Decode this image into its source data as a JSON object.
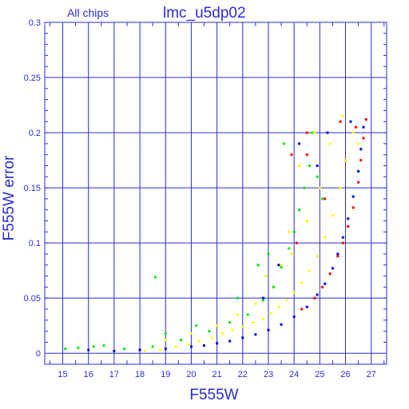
{
  "chart_data": {
    "type": "scatter",
    "title": "lmc_u5dp02",
    "subtitle": "All chips",
    "xlabel": "F555W",
    "ylabel": "F555W error",
    "xlim": [
      14.3,
      27.6
    ],
    "ylim": [
      -0.01,
      0.3
    ],
    "x_ticks": [
      "15",
      "16",
      "17",
      "18",
      "19",
      "20",
      "21",
      "22",
      "23",
      "24",
      "25",
      "26",
      "27"
    ],
    "y_ticks": [
      "0",
      "0.05",
      "0.1",
      "0.15",
      "0.2",
      "0.25",
      "0.3"
    ],
    "grid": true,
    "series": [
      {
        "color": "#ffff00",
        "points": [
          [
            18.2,
            0.002
          ],
          [
            18.8,
            0.003
          ],
          [
            19.4,
            0.006
          ],
          [
            19.9,
            0.008
          ],
          [
            20.3,
            0.011
          ],
          [
            20.8,
            0.014
          ],
          [
            21.2,
            0.018
          ],
          [
            21.6,
            0.021
          ],
          [
            22.0,
            0.024
          ],
          [
            22.4,
            0.028
          ],
          [
            22.8,
            0.031
          ],
          [
            23.1,
            0.036
          ],
          [
            23.4,
            0.042
          ],
          [
            23.7,
            0.048
          ],
          [
            24.0,
            0.055
          ],
          [
            24.3,
            0.064
          ],
          [
            24.6,
            0.075
          ],
          [
            24.9,
            0.088
          ],
          [
            25.2,
            0.105
          ],
          [
            25.5,
            0.125
          ],
          [
            25.8,
            0.15
          ],
          [
            26.0,
            0.175
          ],
          [
            26.3,
            0.2
          ],
          [
            25.0,
            0.15
          ],
          [
            24.5,
            0.12
          ],
          [
            23.9,
            0.09
          ],
          [
            23.2,
            0.06
          ],
          [
            22.5,
            0.045
          ],
          [
            21.8,
            0.035
          ],
          [
            21.0,
            0.025
          ],
          [
            20.0,
            0.018
          ],
          [
            19.0,
            0.012
          ],
          [
            24.8,
            0.2
          ],
          [
            25.4,
            0.19
          ],
          [
            24.2,
            0.17
          ],
          [
            23.5,
            0.08
          ],
          [
            22.9,
            0.07
          ],
          [
            25.9,
            0.215
          ],
          [
            26.5,
            0.19
          ],
          [
            23.8,
            0.11
          ]
        ]
      },
      {
        "color": "#00ee00",
        "points": [
          [
            15.1,
            0.004
          ],
          [
            15.6,
            0.005
          ],
          [
            16.2,
            0.006
          ],
          [
            16.6,
            0.007
          ],
          [
            17.4,
            0.004
          ],
          [
            18.5,
            0.006
          ],
          [
            19.6,
            0.012
          ],
          [
            20.7,
            0.02
          ],
          [
            21.5,
            0.028
          ],
          [
            22.2,
            0.035
          ],
          [
            22.8,
            0.048
          ],
          [
            23.2,
            0.06
          ],
          [
            23.5,
            0.078
          ],
          [
            23.8,
            0.095
          ],
          [
            24.0,
            0.11
          ],
          [
            24.2,
            0.13
          ],
          [
            24.4,
            0.15
          ],
          [
            24.6,
            0.17
          ],
          [
            23.6,
            0.19
          ],
          [
            24.9,
            0.16
          ],
          [
            22.6,
            0.08
          ],
          [
            21.8,
            0.05
          ],
          [
            20.2,
            0.025
          ],
          [
            19.0,
            0.018
          ],
          [
            23.0,
            0.09
          ],
          [
            24.7,
            0.2
          ],
          [
            25.1,
            0.14
          ],
          [
            18.6,
            0.069
          ]
        ]
      },
      {
        "color": "#0000ee",
        "points": [
          [
            16.0,
            0.003
          ],
          [
            17.0,
            0.002
          ],
          [
            18.0,
            0.003
          ],
          [
            19.0,
            0.004
          ],
          [
            20.0,
            0.006
          ],
          [
            20.5,
            0.007
          ],
          [
            21.0,
            0.009
          ],
          [
            21.5,
            0.011
          ],
          [
            22.0,
            0.014
          ],
          [
            22.5,
            0.017
          ],
          [
            23.0,
            0.021
          ],
          [
            23.5,
            0.026
          ],
          [
            24.0,
            0.033
          ],
          [
            24.5,
            0.042
          ],
          [
            24.9,
            0.053
          ],
          [
            25.2,
            0.063
          ],
          [
            25.5,
            0.077
          ],
          [
            25.7,
            0.09
          ],
          [
            25.9,
            0.105
          ],
          [
            26.1,
            0.122
          ],
          [
            26.3,
            0.142
          ],
          [
            26.5,
            0.165
          ],
          [
            26.6,
            0.185
          ],
          [
            26.7,
            0.205
          ],
          [
            24.2,
            0.19
          ],
          [
            24.9,
            0.17
          ],
          [
            23.4,
            0.08
          ],
          [
            22.8,
            0.05
          ],
          [
            25.3,
            0.2
          ],
          [
            26.2,
            0.21
          ]
        ]
      },
      {
        "color": "#ff0000",
        "points": [
          [
            24.3,
            0.04
          ],
          [
            24.8,
            0.05
          ],
          [
            25.1,
            0.06
          ],
          [
            25.4,
            0.072
          ],
          [
            25.7,
            0.088
          ],
          [
            25.9,
            0.1
          ],
          [
            26.1,
            0.115
          ],
          [
            26.3,
            0.132
          ],
          [
            26.5,
            0.155
          ],
          [
            26.6,
            0.175
          ],
          [
            26.7,
            0.195
          ],
          [
            26.8,
            0.212
          ],
          [
            24.5,
            0.2
          ],
          [
            24.5,
            0.18
          ],
          [
            25.8,
            0.21
          ],
          [
            26.4,
            0.205
          ],
          [
            24.1,
            0.1
          ],
          [
            23.9,
            0.18
          ],
          [
            25.2,
            0.14
          ]
        ]
      }
    ]
  }
}
